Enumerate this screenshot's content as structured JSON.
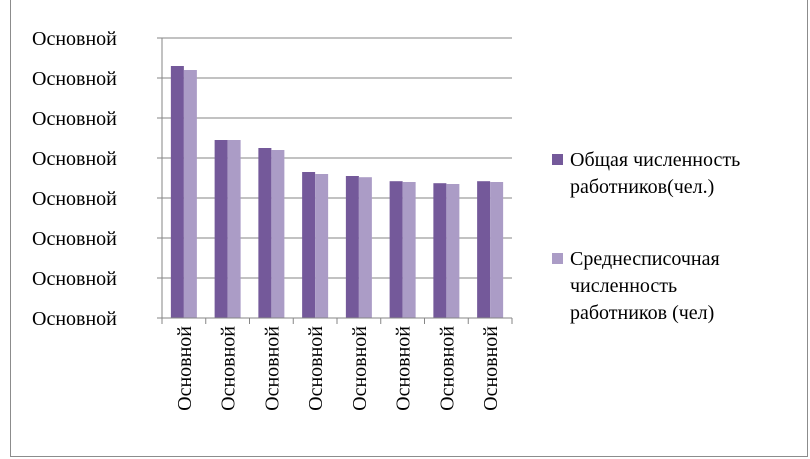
{
  "colors": {
    "series1": "#74599a",
    "series2": "#ab9cc6",
    "gridline": "#868686",
    "axis": "#868686"
  },
  "chart_data": {
    "type": "bar",
    "categories": [
      "Основной",
      "Основной",
      "Основной",
      "Основной",
      "Основной",
      "Основной",
      "Основной",
      "Основной"
    ],
    "series": [
      {
        "name": "Общая численность работников(чел.)",
        "values": [
          6.3,
          4.45,
          4.25,
          3.65,
          3.55,
          3.42,
          3.37,
          3.42
        ]
      },
      {
        "name": "Среднесписочная численность работников (чел)",
        "values": [
          6.2,
          4.45,
          4.2,
          3.6,
          3.52,
          3.4,
          3.35,
          3.4
        ]
      }
    ],
    "y_tick_labels": [
      "Основной",
      "Основной",
      "Основной",
      "Основной",
      "Основной",
      "Основной",
      "Основной",
      "Основной"
    ],
    "ylim": [
      0,
      7
    ],
    "grid": true,
    "legend_position": "right",
    "legend": [
      {
        "lines": [
          "Общая численность",
          "работников(чел.)"
        ]
      },
      {
        "lines": [
          "Среднесписочная",
          "численность",
          "работников (чел)"
        ]
      }
    ]
  }
}
